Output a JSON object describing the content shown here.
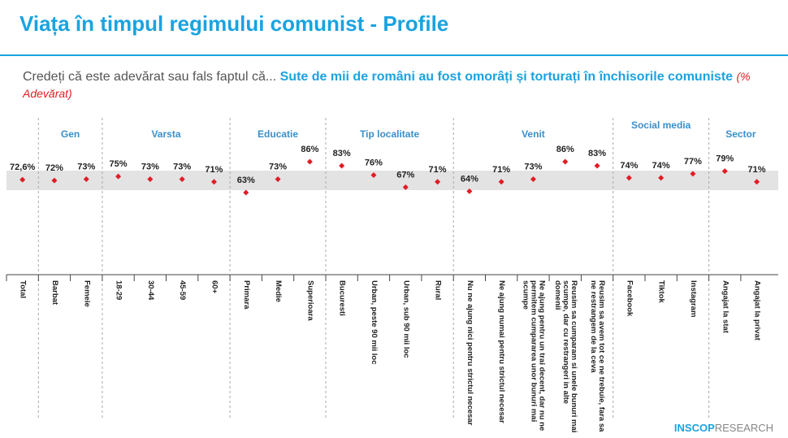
{
  "header": {
    "title": "Viața în timpul regimului comunist - Profile",
    "question": "Credeți că este adevărat sau fals faptul că...",
    "statement": "Sute de mii de români au fost omorâți și torturați în închisorile comuniste",
    "note": "(% Adevărat)"
  },
  "chart_data": {
    "type": "dot",
    "color": "#e31b23",
    "categories": [
      "Total",
      "Barbat",
      "Femeie",
      "18-29",
      "30-44",
      "45-59",
      "60+",
      "Primara",
      "Medie",
      "Superioara",
      "Bucuresti",
      "Urban, peste 90 mii loc",
      "Urban, sub 90 mii loc",
      "Rural",
      "Nu ne ajung nici pentru strictul necesar",
      "Ne ajung numai pentru strictul necesar",
      "Ne ajung pentru un trai decent, dar nu ne permitem cumpararea unor bunuri mai scumpe",
      "Reusim sa cumparam si unele bunuri mai scumpe, dar cu restrangeri in alte domenii",
      "Reusim sa avem tot ce ne trebuie, fara sa ne restrangem de la ceva",
      "Facebook",
      "Tiktok",
      "Instagram",
      "Angajat la stat",
      "Angajat la privat"
    ],
    "values": [
      72.6,
      72,
      73,
      75,
      73,
      73,
      71,
      63,
      73,
      86,
      83,
      76,
      67,
      71,
      64,
      71,
      73,
      86,
      83,
      74,
      74,
      77,
      79,
      71
    ],
    "value_labels": [
      "72,6%",
      "72%",
      "73%",
      "75%",
      "73%",
      "73%",
      "71%",
      "63%",
      "73%",
      "86%",
      "83%",
      "76%",
      "67%",
      "71%",
      "64%",
      "71%",
      "73%",
      "86%",
      "83%",
      "74%",
      "74%",
      "77%",
      "79%",
      "71%"
    ],
    "groups": [
      {
        "label": "Gen",
        "span": 2
      },
      {
        "label": "Varsta",
        "span": 4
      },
      {
        "label": "Educatie",
        "span": 3
      },
      {
        "label": "Tip localitate",
        "span": 4
      },
      {
        "label": "Venit",
        "span": 5
      },
      {
        "label": "Social media",
        "span": 3
      },
      {
        "label": "Sector",
        "span": 2
      }
    ]
  },
  "logo": {
    "brand": "INSCOP",
    "suffix": "RESEARCH"
  }
}
